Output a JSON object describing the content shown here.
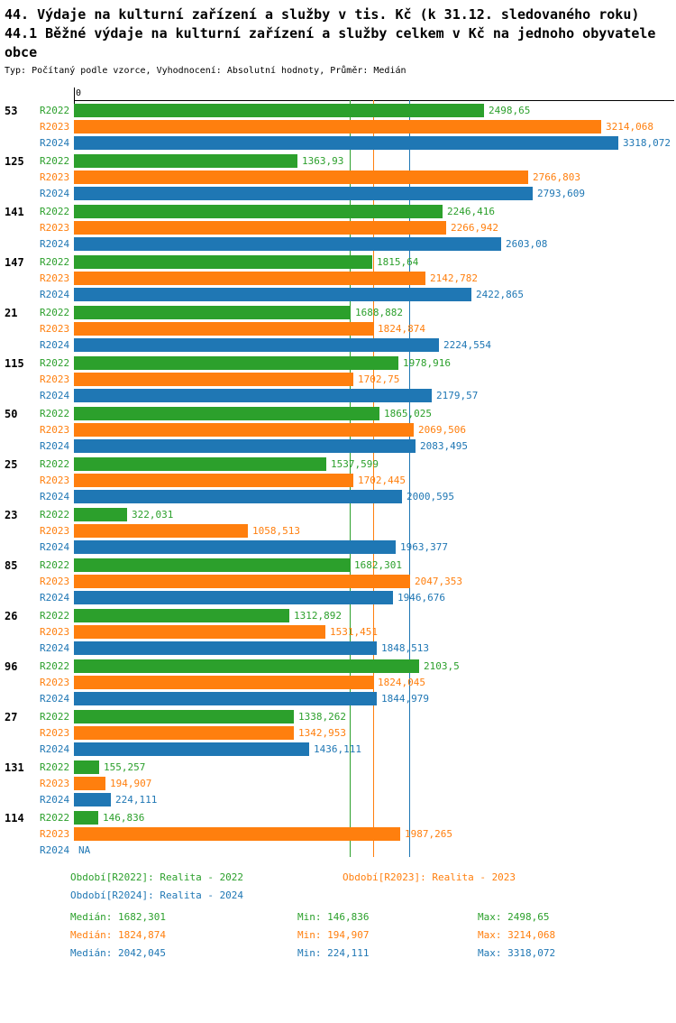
{
  "title": {
    "line1": "44. Výdaje na kulturní zařízení a služby v tis. Kč (k 31.12. sledovaného roku)",
    "line2": "44.1 Běžné výdaje na kulturní zařízení a služby celkem v Kč na jednoho obyvatele",
    "line3": "obce"
  },
  "subtitle": "Typ: Počítaný podle vzorce, Vyhodnocení: Absolutní hodnoty, Průměr: Medián",
  "axis": {
    "zero_label": "0"
  },
  "colors": {
    "r2022": "#2ca02c",
    "r2023": "#ff7f0e",
    "r2024": "#1f77b4"
  },
  "chart_data": {
    "type": "bar",
    "orientation": "horizontal",
    "series_labels": [
      "R2022",
      "R2023",
      "R2024"
    ],
    "xmin": 0,
    "xmax": 3318.072,
    "medians": [
      1682.301,
      1824.874,
      2042.045
    ],
    "groups": [
      {
        "label": "53",
        "values": [
          2498.65,
          3214.068,
          3318.072
        ],
        "display": [
          "2498,65",
          "3214,068",
          "3318,072"
        ]
      },
      {
        "label": "125",
        "values": [
          1363.93,
          2766.803,
          2793.609
        ],
        "display": [
          "1363,93",
          "2766,803",
          "2793,609"
        ]
      },
      {
        "label": "141",
        "values": [
          2246.416,
          2266.942,
          2603.08
        ],
        "display": [
          "2246,416",
          "2266,942",
          "2603,08"
        ]
      },
      {
        "label": "147",
        "values": [
          1815.64,
          2142.782,
          2422.865
        ],
        "display": [
          "1815,64",
          "2142,782",
          "2422,865"
        ]
      },
      {
        "label": "21",
        "values": [
          1688.882,
          1824.874,
          2224.554
        ],
        "display": [
          "1688,882",
          "1824,874",
          "2224,554"
        ]
      },
      {
        "label": "115",
        "values": [
          1978.916,
          1702.75,
          2179.57
        ],
        "display": [
          "1978,916",
          "1702,75",
          "2179,57"
        ]
      },
      {
        "label": "50",
        "values": [
          1865.025,
          2069.506,
          2083.495
        ],
        "display": [
          "1865,025",
          "2069,506",
          "2083,495"
        ]
      },
      {
        "label": "25",
        "values": [
          1537.599,
          1702.445,
          2000.595
        ],
        "display": [
          "1537,599",
          "1702,445",
          "2000,595"
        ]
      },
      {
        "label": "23",
        "values": [
          322.031,
          1058.513,
          1963.377
        ],
        "display": [
          "322,031",
          "1058,513",
          "1963,377"
        ]
      },
      {
        "label": "85",
        "values": [
          1682.301,
          2047.353,
          1946.676
        ],
        "display": [
          "1682,301",
          "2047,353",
          "1946,676"
        ]
      },
      {
        "label": "26",
        "values": [
          1312.892,
          1531.451,
          1848.513
        ],
        "display": [
          "1312,892",
          "1531,451",
          "1848,513"
        ]
      },
      {
        "label": "96",
        "values": [
          2103.5,
          1824.045,
          1844.979
        ],
        "display": [
          "2103,5",
          "1824,045",
          "1844,979"
        ]
      },
      {
        "label": "27",
        "values": [
          1338.262,
          1342.953,
          1436.111
        ],
        "display": [
          "1338,262",
          "1342,953",
          "1436,111"
        ]
      },
      {
        "label": "131",
        "values": [
          155.257,
          194.907,
          224.111
        ],
        "display": [
          "155,257",
          "194,907",
          "224,111"
        ]
      },
      {
        "label": "114",
        "values": [
          146.836,
          1987.265,
          null
        ],
        "display": [
          "146,836",
          "1987,265",
          "NA"
        ]
      }
    ]
  },
  "legend": [
    {
      "label": "Období[R2022]: Realita - 2022"
    },
    {
      "label": "Období[R2023]: Realita - 2023"
    },
    {
      "label": "Období[R2024]: Realita - 2024"
    }
  ],
  "stats": [
    {
      "median": "Medián: 1682,301",
      "min": "Min: 146,836",
      "max": "Max: 2498,65"
    },
    {
      "median": "Medián: 1824,874",
      "min": "Min: 194,907",
      "max": "Max: 3214,068"
    },
    {
      "median": "Medián: 2042,045",
      "min": "Min: 224,111",
      "max": "Max: 3318,072"
    }
  ]
}
